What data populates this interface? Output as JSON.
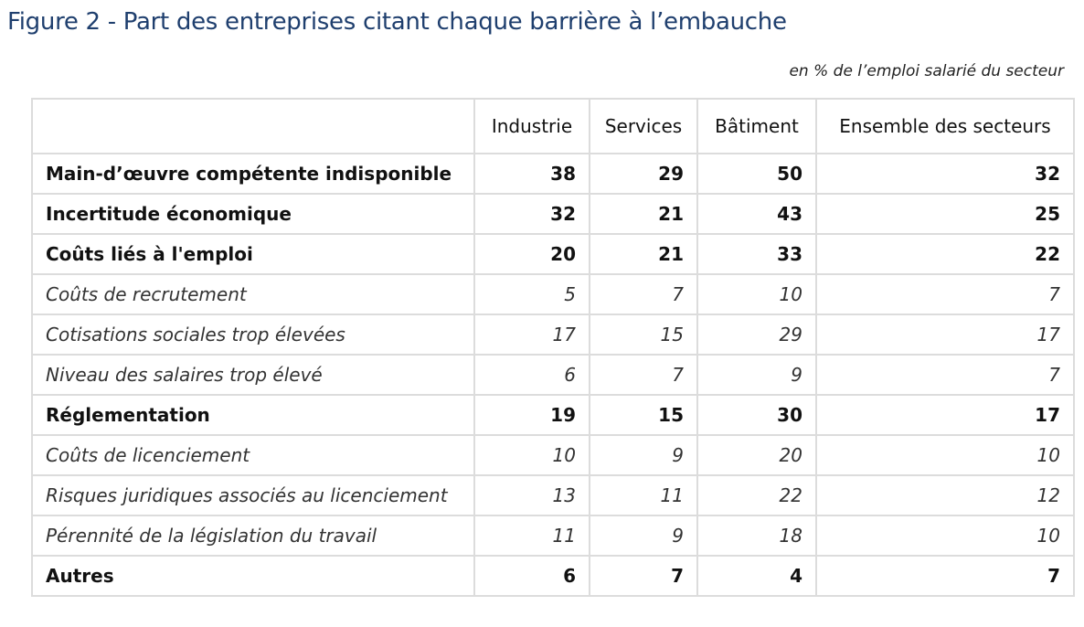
{
  "figure": {
    "title": "Figure 2 - Part des entreprises citant chaque barrière à l’embauche",
    "subtitle": "en % de l’emploi salarié du secteur"
  },
  "table": {
    "headers": [
      "",
      "Industrie",
      "Services",
      "Bâtiment",
      "Ensemble des secteurs"
    ],
    "rows": [
      {
        "label": "Main-d’œuvre compétente indisponible",
        "level": "main",
        "values": [
          "38",
          "29",
          "50",
          "32"
        ]
      },
      {
        "label": "Incertitude économique",
        "level": "main",
        "values": [
          "32",
          "21",
          "43",
          "25"
        ]
      },
      {
        "label": "Coûts liés à l'emploi",
        "level": "main",
        "values": [
          "20",
          "21",
          "33",
          "22"
        ]
      },
      {
        "label": "Coûts de recrutement",
        "level": "sub",
        "values": [
          "5",
          "7",
          "10",
          "7"
        ]
      },
      {
        "label": "Cotisations sociales trop élevées",
        "level": "sub",
        "values": [
          "17",
          "15",
          "29",
          "17"
        ]
      },
      {
        "label": "Niveau des salaires trop élevé",
        "level": "sub",
        "values": [
          "6",
          "7",
          "9",
          "7"
        ]
      },
      {
        "label": "Réglementation",
        "level": "main",
        "values": [
          "19",
          "15",
          "30",
          "17"
        ]
      },
      {
        "label": "Coûts de licenciement",
        "level": "sub",
        "values": [
          "10",
          "9",
          "20",
          "10"
        ]
      },
      {
        "label": "Risques juridiques associés au licenciement",
        "level": "sub",
        "values": [
          "13",
          "11",
          "22",
          "12"
        ]
      },
      {
        "label": "Pérennité de la législation du travail",
        "level": "sub",
        "values": [
          "11",
          "9",
          "18",
          "10"
        ]
      },
      {
        "label": "Autres",
        "level": "main",
        "values": [
          "6",
          "7",
          "4",
          "7"
        ]
      }
    ]
  },
  "colors": {
    "title": "#1f3f6e",
    "grid": "#dcdcdc"
  }
}
